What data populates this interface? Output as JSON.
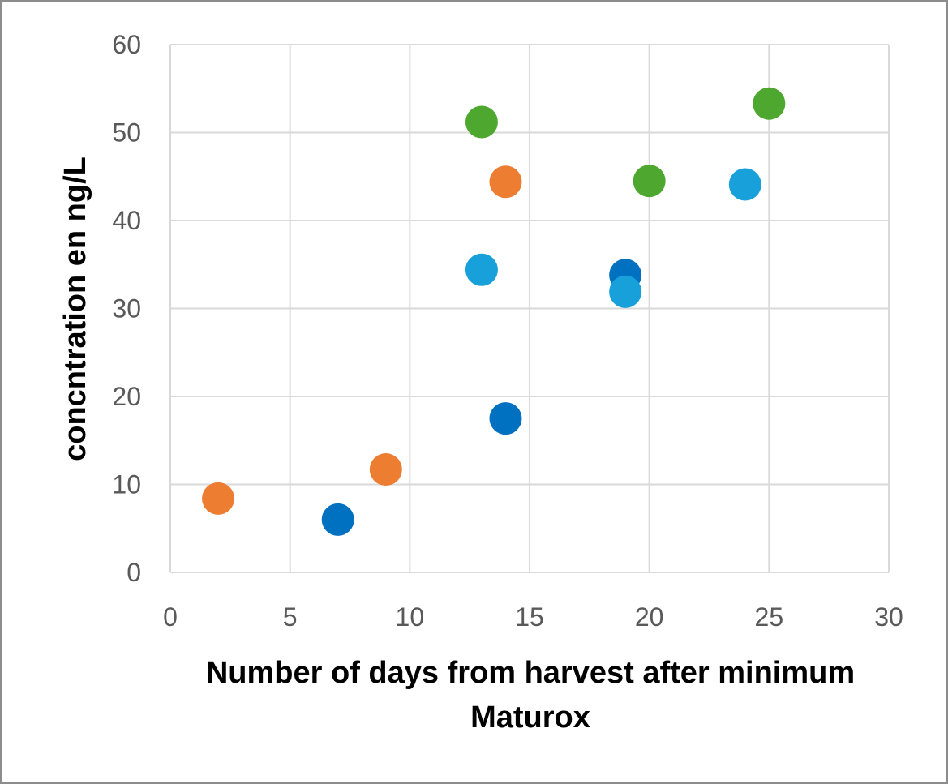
{
  "chart_data": {
    "type": "scatter",
    "title": "",
    "xlabel_lines": [
      "Number of days from harvest after minimum",
      "Maturox"
    ],
    "ylabel": "conc­ntration en ng/L",
    "xlim": [
      0,
      30
    ],
    "ylim": [
      0,
      60
    ],
    "x_ticks": [
      0,
      5,
      10,
      15,
      20,
      25,
      30
    ],
    "y_ticks": [
      0,
      10,
      20,
      30,
      40,
      50,
      60
    ],
    "grid": true,
    "legend": "none",
    "series": [
      {
        "color": "#ED7D31",
        "points": [
          {
            "x": 2,
            "y": 8.4
          },
          {
            "x": 9,
            "y": 11.7
          },
          {
            "x": 14,
            "y": 44.4
          }
        ]
      },
      {
        "color": "#0070C0",
        "points": [
          {
            "x": 7,
            "y": 6.0
          },
          {
            "x": 14,
            "y": 17.5
          },
          {
            "x": 19,
            "y": 33.8
          }
        ]
      },
      {
        "color": "#18A0DB",
        "points": [
          {
            "x": 13,
            "y": 34.4
          },
          {
            "x": 19,
            "y": 31.9
          },
          {
            "x": 24,
            "y": 44.1
          }
        ]
      },
      {
        "color": "#4EA72E",
        "points": [
          {
            "x": 13,
            "y": 51.2
          },
          {
            "x": 20,
            "y": 44.5
          },
          {
            "x": 25,
            "y": 53.3
          }
        ]
      }
    ]
  }
}
